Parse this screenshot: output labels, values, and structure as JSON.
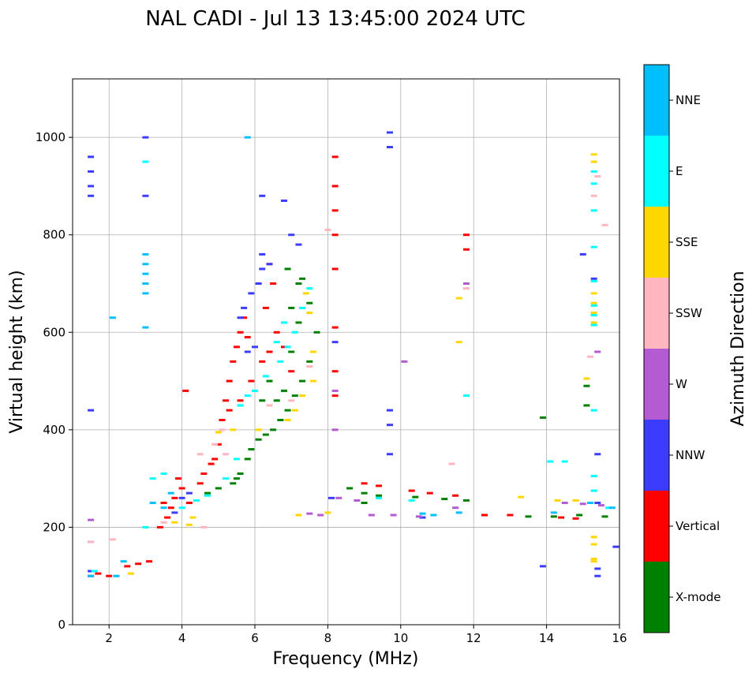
{
  "chart_data": {
    "type": "scatter",
    "title": "NAL CADI - Jul 13 13:45:00 2024 UTC",
    "xlabel": "Frequency (MHz)",
    "ylabel": "Virtual height (km)",
    "xlim": [
      1,
      16
    ],
    "ylim": [
      0,
      1120
    ],
    "xticks": [
      2,
      4,
      6,
      8,
      10,
      12,
      14,
      16
    ],
    "yticks": [
      0,
      200,
      400,
      600,
      800,
      1000
    ],
    "grid": true,
    "colorbar": {
      "title": "Azimuth Direction",
      "categories": [
        {
          "name": "X-mode",
          "color": "#008000"
        },
        {
          "name": "Vertical",
          "color": "#ff0000"
        },
        {
          "name": "NNW",
          "color": "#3c3cff"
        },
        {
          "name": "W",
          "color": "#b45ad2"
        },
        {
          "name": "SSW",
          "color": "#ffb6c1"
        },
        {
          "name": "SSE",
          "color": "#ffd700"
        },
        {
          "name": "E",
          "color": "#00ffff"
        },
        {
          "name": "NNE",
          "color": "#00bfff"
        }
      ]
    },
    "series": [
      {
        "name": "X-mode",
        "points": [
          [
            5.4,
            290
          ],
          [
            5.5,
            300
          ],
          [
            5.6,
            310
          ],
          [
            5.8,
            340
          ],
          [
            5.9,
            360
          ],
          [
            6.1,
            380
          ],
          [
            6.3,
            390
          ],
          [
            6.5,
            400
          ],
          [
            6.7,
            420
          ],
          [
            6.9,
            440
          ],
          [
            7.1,
            470
          ],
          [
            7.3,
            500
          ],
          [
            7.5,
            540
          ],
          [
            7.7,
            600
          ],
          [
            7.5,
            660
          ],
          [
            7.2,
            700
          ],
          [
            6.9,
            730
          ],
          [
            7.0,
            560
          ],
          [
            7.2,
            620
          ],
          [
            6.8,
            480
          ],
          [
            6.6,
            460
          ],
          [
            6.4,
            500
          ],
          [
            9.0,
            270
          ],
          [
            9.4,
            265
          ],
          [
            10.4,
            262
          ],
          [
            11.2,
            258
          ],
          [
            11.8,
            255
          ],
          [
            12.3,
            225
          ],
          [
            13.5,
            222
          ],
          [
            14.2,
            222
          ],
          [
            14.9,
            225
          ],
          [
            15.6,
            222
          ],
          [
            8.6,
            280
          ],
          [
            9.0,
            250
          ],
          [
            13.9,
            425
          ],
          [
            15.1,
            490
          ],
          [
            15.1,
            450
          ],
          [
            4.7,
            270
          ],
          [
            5.0,
            280
          ],
          [
            6.2,
            460
          ],
          [
            7.0,
            650
          ],
          [
            7.3,
            710
          ]
        ]
      },
      {
        "name": "Vertical",
        "points": [
          [
            1.5,
            100
          ],
          [
            1.7,
            105
          ],
          [
            2.0,
            100
          ],
          [
            2.5,
            120
          ],
          [
            2.8,
            125
          ],
          [
            3.1,
            130
          ],
          [
            3.4,
            200
          ],
          [
            3.6,
            220
          ],
          [
            3.8,
            260
          ],
          [
            3.9,
            300
          ],
          [
            4.0,
            280
          ],
          [
            4.2,
            250
          ],
          [
            4.5,
            290
          ],
          [
            4.8,
            330
          ],
          [
            5.0,
            370
          ],
          [
            5.1,
            420
          ],
          [
            5.2,
            460
          ],
          [
            5.3,
            500
          ],
          [
            5.4,
            540
          ],
          [
            5.5,
            570
          ],
          [
            5.6,
            600
          ],
          [
            5.7,
            630
          ],
          [
            5.3,
            440
          ],
          [
            5.6,
            460
          ],
          [
            5.9,
            500
          ],
          [
            6.2,
            540
          ],
          [
            6.4,
            560
          ],
          [
            6.3,
            650
          ],
          [
            6.5,
            700
          ],
          [
            6.4,
            740
          ],
          [
            6.6,
            600
          ],
          [
            6.8,
            570
          ],
          [
            7.0,
            520
          ],
          [
            8.2,
            960
          ],
          [
            8.2,
            900
          ],
          [
            8.2,
            850
          ],
          [
            8.2,
            800
          ],
          [
            8.2,
            730
          ],
          [
            8.2,
            610
          ],
          [
            8.2,
            520
          ],
          [
            8.2,
            470
          ],
          [
            9.0,
            290
          ],
          [
            9.4,
            285
          ],
          [
            10.3,
            275
          ],
          [
            10.8,
            270
          ],
          [
            11.5,
            265
          ],
          [
            12.3,
            225
          ],
          [
            13.0,
            225
          ],
          [
            14.4,
            220
          ],
          [
            14.8,
            218
          ],
          [
            11.8,
            800
          ],
          [
            11.8,
            770
          ],
          [
            4.1,
            480
          ],
          [
            3.5,
            250
          ],
          [
            3.7,
            240
          ],
          [
            4.6,
            310
          ],
          [
            4.9,
            340
          ],
          [
            5.8,
            590
          ]
        ]
      },
      {
        "name": "NNW",
        "points": [
          [
            1.5,
            960
          ],
          [
            1.5,
            930
          ],
          [
            1.5,
            900
          ],
          [
            1.5,
            880
          ],
          [
            1.5,
            440
          ],
          [
            1.5,
            170
          ],
          [
            1.5,
            110
          ],
          [
            3.0,
            1000
          ],
          [
            3.0,
            880
          ],
          [
            3.8,
            230
          ],
          [
            4.0,
            260
          ],
          [
            4.2,
            270
          ],
          [
            5.6,
            630
          ],
          [
            5.7,
            650
          ],
          [
            5.9,
            680
          ],
          [
            6.1,
            700
          ],
          [
            6.2,
            730
          ],
          [
            6.2,
            760
          ],
          [
            6.2,
            880
          ],
          [
            6.8,
            870
          ],
          [
            7.0,
            800
          ],
          [
            7.2,
            780
          ],
          [
            6.4,
            740
          ],
          [
            6.0,
            570
          ],
          [
            5.8,
            560
          ],
          [
            9.7,
            1010
          ],
          [
            9.7,
            980
          ],
          [
            9.7,
            440
          ],
          [
            9.7,
            410
          ],
          [
            9.7,
            350
          ],
          [
            8.2,
            580
          ],
          [
            15.0,
            760
          ],
          [
            15.3,
            710
          ],
          [
            15.4,
            350
          ],
          [
            15.4,
            250
          ],
          [
            15.4,
            115
          ],
          [
            15.4,
            100
          ],
          [
            15.9,
            160
          ],
          [
            13.9,
            120
          ],
          [
            8.1,
            260
          ],
          [
            10.6,
            220
          ]
        ]
      },
      {
        "name": "W",
        "points": [
          [
            8.3,
            260
          ],
          [
            8.8,
            255
          ],
          [
            9.2,
            225
          ],
          [
            9.8,
            225
          ],
          [
            10.5,
            222
          ],
          [
            7.8,
            225
          ],
          [
            7.5,
            228
          ],
          [
            14.5,
            250
          ],
          [
            15.0,
            248
          ],
          [
            15.5,
            245
          ],
          [
            11.5,
            240
          ],
          [
            11.8,
            700
          ],
          [
            8.2,
            400
          ],
          [
            8.2,
            480
          ],
          [
            1.5,
            215
          ],
          [
            3.0,
            700
          ],
          [
            10.1,
            540
          ],
          [
            15.4,
            560
          ]
        ]
      },
      {
        "name": "SSW",
        "points": [
          [
            1.5,
            170
          ],
          [
            2.1,
            175
          ],
          [
            3.5,
            210
          ],
          [
            4.6,
            200
          ],
          [
            4.9,
            370
          ],
          [
            5.1,
            400
          ],
          [
            5.2,
            350
          ],
          [
            4.5,
            350
          ],
          [
            6.4,
            450
          ],
          [
            7.0,
            460
          ],
          [
            7.5,
            530
          ],
          [
            11.4,
            330
          ],
          [
            15.2,
            550
          ],
          [
            15.3,
            880
          ],
          [
            15.4,
            920
          ],
          [
            15.6,
            820
          ],
          [
            11.8,
            690
          ],
          [
            8.0,
            810
          ]
        ]
      },
      {
        "name": "SSE",
        "points": [
          [
            2.6,
            105
          ],
          [
            3.8,
            210
          ],
          [
            4.2,
            205
          ],
          [
            4.3,
            220
          ],
          [
            5.0,
            395
          ],
          [
            5.4,
            400
          ],
          [
            6.1,
            400
          ],
          [
            6.9,
            420
          ],
          [
            7.1,
            440
          ],
          [
            7.3,
            470
          ],
          [
            7.6,
            500
          ],
          [
            7.6,
            560
          ],
          [
            7.5,
            640
          ],
          [
            7.4,
            680
          ],
          [
            11.6,
            670
          ],
          [
            11.6,
            580
          ],
          [
            13.3,
            262
          ],
          [
            14.3,
            255
          ],
          [
            14.8,
            255
          ],
          [
            15.3,
            965
          ],
          [
            15.3,
            950
          ],
          [
            15.3,
            680
          ],
          [
            15.3,
            660
          ],
          [
            15.3,
            640
          ],
          [
            15.3,
            620
          ],
          [
            15.3,
            180
          ],
          [
            15.3,
            165
          ],
          [
            15.3,
            135
          ],
          [
            15.3,
            130
          ],
          [
            15.1,
            505
          ],
          [
            8.0,
            230
          ],
          [
            7.2,
            225
          ]
        ]
      },
      {
        "name": "E",
        "points": [
          [
            1.6,
            110
          ],
          [
            3.0,
            200
          ],
          [
            3.2,
            300
          ],
          [
            3.5,
            310
          ],
          [
            4.0,
            240
          ],
          [
            4.4,
            255
          ],
          [
            4.7,
            265
          ],
          [
            5.2,
            300
          ],
          [
            5.5,
            340
          ],
          [
            5.6,
            450
          ],
          [
            5.8,
            470
          ],
          [
            6.0,
            480
          ],
          [
            6.3,
            510
          ],
          [
            6.7,
            540
          ],
          [
            6.9,
            570
          ],
          [
            7.1,
            600
          ],
          [
            7.3,
            650
          ],
          [
            7.5,
            690
          ],
          [
            6.8,
            620
          ],
          [
            6.6,
            580
          ],
          [
            9.4,
            260
          ],
          [
            10.3,
            255
          ],
          [
            14.1,
            335
          ],
          [
            14.5,
            335
          ],
          [
            15.3,
            930
          ],
          [
            15.3,
            905
          ],
          [
            15.3,
            850
          ],
          [
            15.3,
            775
          ],
          [
            15.3,
            705
          ],
          [
            15.3,
            655
          ],
          [
            15.3,
            635
          ],
          [
            15.3,
            615
          ],
          [
            15.3,
            440
          ],
          [
            15.3,
            305
          ],
          [
            15.3,
            275
          ],
          [
            15.7,
            240
          ],
          [
            3.0,
            950
          ],
          [
            11.8,
            470
          ]
        ]
      },
      {
        "name": "NNE",
        "points": [
          [
            1.5,
            100
          ],
          [
            2.2,
            100
          ],
          [
            2.4,
            130
          ],
          [
            3.0,
            760
          ],
          [
            3.0,
            740
          ],
          [
            3.0,
            720
          ],
          [
            3.0,
            700
          ],
          [
            3.0,
            680
          ],
          [
            3.0,
            610
          ],
          [
            3.2,
            250
          ],
          [
            3.5,
            240
          ],
          [
            3.7,
            270
          ],
          [
            5.8,
            1000
          ],
          [
            10.6,
            228
          ],
          [
            10.9,
            225
          ],
          [
            11.6,
            230
          ],
          [
            14.2,
            230
          ],
          [
            15.2,
            250
          ],
          [
            15.8,
            240
          ],
          [
            2.1,
            630
          ]
        ]
      }
    ]
  }
}
